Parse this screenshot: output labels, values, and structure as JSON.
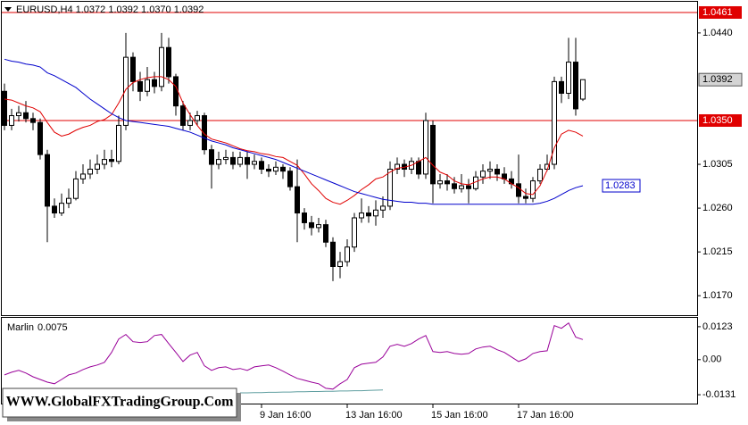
{
  "chart_data": {
    "type": "candlestick",
    "title": "EURUSD,H4  1.0372 1.0392 1.0370 1.0392",
    "categories": [
      null,
      null,
      null,
      null,
      null,
      null,
      null,
      null,
      null,
      null,
      null,
      null,
      null,
      null,
      null,
      null,
      null,
      null,
      null,
      null,
      null,
      null,
      null,
      null,
      null,
      null,
      null,
      null,
      null,
      null,
      null,
      null,
      null,
      null,
      null,
      null,
      "9 Jan 16:00",
      null,
      null,
      null,
      null,
      null,
      null,
      null,
      null,
      null,
      null,
      null,
      "13 Jan 16:00",
      null,
      null,
      null,
      null,
      null,
      null,
      null,
      null,
      null,
      null,
      null,
      "15 Jan 16:00",
      null,
      null,
      null,
      null,
      null,
      null,
      null,
      null,
      null,
      null,
      null,
      "17 Jan 16:00",
      null,
      null,
      null,
      null,
      null,
      null,
      null,
      null,
      null
    ],
    "open": [
      1.038,
      1.0345,
      1.0355,
      1.0358,
      1.0352,
      1.0348,
      1.0315,
      1.0262,
      1.0255,
      1.0265,
      1.027,
      1.029,
      1.0295,
      1.03,
      1.0305,
      1.031,
      1.0308,
      1.0345,
      1.0415,
      1.039,
      1.038,
      1.0392,
      1.0385,
      1.0425,
      1.0395,
      1.0365,
      1.0345,
      1.035,
      1.0355,
      1.032,
      1.0305,
      1.031,
      1.0312,
      1.0305,
      1.0312,
      1.0305,
      1.0308,
      1.03,
      1.0298,
      1.0302,
      1.0298,
      1.0282,
      1.0255,
      1.0245,
      1.024,
      1.0243,
      1.0225,
      1.02,
      1.0205,
      1.022,
      1.025,
      1.0255,
      1.0252,
      1.0258,
      1.0262,
      1.03,
      1.0305,
      1.03,
      1.0308,
      1.0295,
      1.0345,
      1.0285,
      1.0288,
      1.0285,
      1.028,
      1.0283,
      1.028,
      1.0292,
      1.0298,
      1.03,
      1.0295,
      1.029,
      1.0285,
      1.0272,
      1.027,
      1.0288,
      1.03,
      1.0305,
      1.039,
      1.0378,
      1.041,
      1.0372
    ],
    "high": [
      1.0388,
      1.0362,
      1.0365,
      1.037,
      1.0358,
      1.0352,
      1.032,
      1.027,
      1.0275,
      1.028,
      1.0298,
      1.0305,
      1.031,
      1.0315,
      1.032,
      1.032,
      1.0355,
      1.044,
      1.042,
      1.04,
      1.0405,
      1.04,
      1.044,
      1.0435,
      1.0398,
      1.037,
      1.0358,
      1.036,
      1.0358,
      1.0325,
      1.0318,
      1.032,
      1.0318,
      1.0318,
      1.0318,
      1.0315,
      1.0312,
      1.0305,
      1.0308,
      1.0305,
      1.0302,
      1.031,
      1.026,
      1.0252,
      1.025,
      1.0248,
      1.023,
      1.0215,
      1.0228,
      1.0255,
      1.027,
      1.0262,
      1.0268,
      1.0272,
      1.0308,
      1.0312,
      1.031,
      1.0312,
      1.0312,
      1.0358,
      1.035,
      1.0295,
      1.0295,
      1.0292,
      1.0295,
      1.029,
      1.0298,
      1.0305,
      1.0308,
      1.0305,
      1.0302,
      1.0298,
      1.0315,
      1.028,
      1.0292,
      1.0305,
      1.0315,
      1.0395,
      1.0395,
      1.0435,
      1.0435,
      1.0392
    ],
    "low": [
      1.034,
      1.034,
      1.0349,
      1.0348,
      1.034,
      1.031,
      1.0225,
      1.025,
      1.0252,
      1.026,
      1.0268,
      1.0285,
      1.029,
      1.0295,
      1.03,
      1.0302,
      1.0305,
      1.034,
      1.038,
      1.037,
      1.0375,
      1.0378,
      1.038,
      1.0388,
      1.0355,
      1.034,
      1.034,
      1.0345,
      1.0315,
      1.028,
      1.03,
      1.0305,
      1.03,
      1.0302,
      1.029,
      1.03,
      1.0295,
      1.0292,
      1.0294,
      1.029,
      1.0278,
      1.0225,
      1.0238,
      1.0232,
      1.0235,
      1.022,
      1.0185,
      1.0188,
      1.02,
      1.0215,
      1.0245,
      1.0245,
      1.0242,
      1.025,
      1.0258,
      1.0295,
      1.0292,
      1.0295,
      1.029,
      1.029,
      1.0265,
      1.028,
      1.0278,
      1.0275,
      1.0276,
      1.0265,
      1.0278,
      1.0285,
      1.029,
      1.0288,
      1.0285,
      1.028,
      1.0265,
      1.0265,
      1.0266,
      1.0285,
      1.0298,
      1.03,
      1.0368,
      1.0372,
      1.0355,
      1.037
    ],
    "close": [
      1.0345,
      1.0355,
      1.0358,
      1.0352,
      1.0348,
      1.0315,
      1.0262,
      1.0255,
      1.0265,
      1.027,
      1.029,
      1.0295,
      1.03,
      1.0305,
      1.031,
      1.0308,
      1.0345,
      1.0415,
      1.039,
      1.038,
      1.0392,
      1.0385,
      1.0425,
      1.0395,
      1.0365,
      1.0345,
      1.035,
      1.0355,
      1.032,
      1.0305,
      1.031,
      1.0312,
      1.0305,
      1.0312,
      1.0305,
      1.0308,
      1.03,
      1.0298,
      1.0302,
      1.0298,
      1.0282,
      1.0255,
      1.0245,
      1.024,
      1.0243,
      1.0225,
      1.02,
      1.0205,
      1.022,
      1.025,
      1.0255,
      1.0252,
      1.0258,
      1.0262,
      1.03,
      1.0305,
      1.03,
      1.0308,
      1.0295,
      1.035,
      1.0285,
      1.0288,
      1.0285,
      1.028,
      1.0283,
      1.028,
      1.0292,
      1.0298,
      1.03,
      1.0295,
      1.029,
      1.0285,
      1.0272,
      1.027,
      1.0288,
      1.03,
      1.0305,
      1.039,
      1.0378,
      1.041,
      1.0362,
      1.0392
    ],
    "bull_color": "#ffffff",
    "bear_color": "#000000",
    "lines": [
      {
        "color": "#e00000",
        "values": [
          1.0372,
          1.0371,
          1.0368,
          1.0365,
          1.0363,
          1.0359,
          1.0348,
          1.0338,
          1.0334,
          1.0336,
          1.034,
          1.0343,
          1.0345,
          1.0349,
          1.0351,
          1.0356,
          1.0368,
          1.0382,
          1.0389,
          1.0392,
          1.0394,
          1.0395,
          1.0395,
          1.0392,
          1.0385,
          1.0368,
          1.0356,
          1.0345,
          1.0336,
          1.0331,
          1.0329,
          1.0327,
          1.0324,
          1.0321,
          1.0319,
          1.0318,
          1.0316,
          1.0315,
          1.0313,
          1.0312,
          1.0308,
          1.0304,
          1.0295,
          1.0285,
          1.0278,
          1.027,
          1.0266,
          1.0264,
          1.0268,
          1.0273,
          1.0279,
          1.0284,
          1.029,
          1.0292,
          1.0297,
          1.0301,
          1.0302,
          1.0304,
          1.0308,
          1.0312,
          1.0304,
          1.0297,
          1.0294,
          1.0288,
          1.0285,
          1.0284,
          1.0287,
          1.029,
          1.0292,
          1.0292,
          1.029,
          1.0285,
          1.0281,
          1.0275,
          1.0274,
          1.0283,
          1.0299,
          1.0322,
          1.0336,
          1.034,
          1.0338,
          1.0334
        ]
      },
      {
        "color": "#0000cc",
        "values": [
          1.0413,
          1.0411,
          1.041,
          1.0408,
          1.0407,
          1.0405,
          1.0399,
          1.0396,
          1.0392,
          1.0388,
          1.0384,
          1.0378,
          1.0372,
          1.0367,
          1.0362,
          1.0357,
          1.0353,
          1.035,
          1.0349,
          1.0348,
          1.0347,
          1.0346,
          1.0345,
          1.0344,
          1.0342,
          1.034,
          1.0338,
          1.0335,
          1.0332,
          1.0329,
          1.0327,
          1.0325,
          1.0322,
          1.032,
          1.0318,
          1.0316,
          1.0314,
          1.0312,
          1.031,
          1.0307,
          1.0304,
          1.0301,
          1.0298,
          1.0295,
          1.0292,
          1.0289,
          1.0286,
          1.0283,
          1.028,
          1.0277,
          1.0275,
          1.0273,
          1.0271,
          1.0269,
          1.0268,
          1.0267,
          1.0266,
          1.0266,
          1.0265,
          1.0265,
          1.0264,
          1.0264,
          1.0264,
          1.0264,
          1.0264,
          1.0264,
          1.0264,
          1.0264,
          1.0264,
          1.0264,
          1.0264,
          1.0264,
          1.0264,
          1.0264,
          1.0264,
          1.0265,
          1.0267,
          1.027,
          1.0274,
          1.0278,
          1.0281,
          1.0283
        ]
      }
    ],
    "hlines": [
      {
        "value": 1.0461,
        "color": "#e00000"
      },
      {
        "value": 1.035,
        "label": "1.0350",
        "color": "#e00000"
      }
    ],
    "ylim": [
      1.015,
      1.0472
    ],
    "yticks": [
      {
        "value": 1.044,
        "label": "1.0440"
      },
      1.0305,
      {
        "value": 1.026,
        "label": "1.0260"
      },
      1.0215,
      {
        "value": 1.017,
        "label": "1.0170"
      }
    ],
    "grid": false,
    "indicator": {
      "name": "Marlin",
      "ylim": [
        -0.0164,
        0.0156
      ],
      "yticks": [
        0.0123,
        {
          "value": 0,
          "label": "0.00"
        },
        -0.0131
      ],
      "series": [
        {
          "color": "#990099",
          "values": [
            -0.0057,
            -0.0047,
            -0.004,
            -0.005,
            -0.0064,
            -0.0074,
            -0.0084,
            -0.009,
            -0.0074,
            -0.0057,
            -0.005,
            -0.0037,
            -0.0027,
            -0.002,
            -0.001,
            0.0027,
            0.0077,
            0.0094,
            0.0067,
            0.0064,
            0.0067,
            0.009,
            0.0094,
            0.006,
            0.0027,
            -0.0007,
            0.0017,
            0.0027,
            -0.0023,
            -0.004,
            -0.003,
            -0.0027,
            -0.0037,
            -0.0033,
            -0.004,
            -0.0027,
            -0.0023,
            -0.002,
            -0.003,
            -0.0043,
            -0.0057,
            -0.007,
            -0.0077,
            -0.0084,
            -0.009,
            -0.0107,
            -0.011,
            -0.009,
            -0.0074,
            -0.003,
            -0.0017,
            -0.0013,
            -0.001,
            0.001,
            0.005,
            0.0057,
            0.005,
            0.006,
            0.0077,
            0.009,
            0.003,
            0.0027,
            0.003,
            0.0023,
            0.002,
            0.0023,
            0.004,
            0.0047,
            0.005,
            0.0037,
            0.0027,
            0.001,
            -0.0007,
            0.0003,
            0.0023,
            0.003,
            0.0033,
            0.0127,
            0.0117,
            0.0137,
            0.0084,
            0.0075
          ]
        },
        {
          "color": "#5f9ea0",
          "values": [
            null,
            null,
            null,
            null,
            null,
            null,
            null,
            null,
            null,
            null,
            null,
            null,
            null,
            null,
            null,
            null,
            null,
            null,
            null,
            null,
            null,
            null,
            null,
            null,
            null,
            null,
            null,
            null,
            null,
            null,
            null,
            null,
            null,
            -0.0124,
            -0.0124,
            -0.0123,
            -0.0123,
            -0.0122,
            -0.0122,
            -0.0121,
            -0.0121,
            -0.012,
            -0.012,
            -0.0119,
            -0.0119,
            -0.0118,
            -0.0118,
            -0.0117,
            -0.0117,
            -0.0116,
            -0.0116,
            -0.0115,
            -0.0114,
            -0.0113,
            null,
            null,
            null,
            null,
            null,
            null,
            null,
            null,
            null,
            null,
            null,
            null,
            null,
            null,
            null,
            null,
            null,
            null,
            null,
            null,
            null,
            null,
            null,
            null,
            null,
            null,
            null,
            null
          ]
        }
      ]
    }
  },
  "watermark": "WWW.GlobalFXTradingGroup.Com"
}
